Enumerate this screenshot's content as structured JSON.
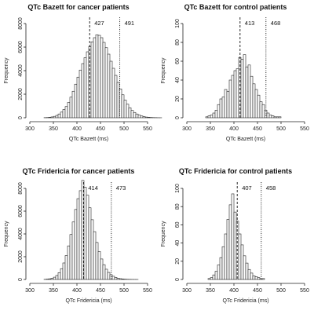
{
  "chart_data": [
    {
      "type": "bar",
      "title": "QTc Bazett for cancer patients",
      "xlabel": "QTc Bazett",
      "ylabel": "Frequency",
      "xlim": [
        300,
        550
      ],
      "ylim": [
        0,
        8000
      ],
      "xticks": [
        "300",
        "350",
        "400",
        "450",
        "500",
        "550"
      ],
      "yticks": [
        "0",
        "2000",
        "4000",
        "6000",
        "8000"
      ],
      "bin_width": 5,
      "bins_start": 330,
      "values": [
        10,
        20,
        40,
        70,
        120,
        200,
        320,
        480,
        700,
        950,
        1300,
        1750,
        2250,
        2850,
        3450,
        4050,
        4600,
        5100,
        5600,
        6050,
        6450,
        6800,
        7050,
        7000,
        6800,
        6400,
        5950,
        5400,
        4800,
        4200,
        3600,
        3000,
        2450,
        1950,
        1500,
        1150,
        850,
        620,
        450,
        320,
        220,
        150,
        100,
        60,
        40,
        25,
        15,
        10,
        5,
        3
      ],
      "vlines": [
        {
          "x": 427,
          "style": "dashed",
          "label": "427"
        },
        {
          "x": 491,
          "style": "dotted",
          "label": "491"
        }
      ]
    },
    {
      "type": "bar",
      "title": "QTc Bazett for control patients",
      "xlabel": "QTc Bazett",
      "ylabel": "Frequency",
      "xlim": [
        300,
        550
      ],
      "ylim": [
        0,
        100
      ],
      "xticks": [
        "300",
        "350",
        "400",
        "450",
        "500",
        "550"
      ],
      "yticks": [
        "0",
        "20",
        "40",
        "60",
        "80",
        "100"
      ],
      "bin_width": 5,
      "bins_start": 340,
      "values": [
        1,
        2,
        3,
        5,
        8,
        14,
        20,
        22,
        30,
        28,
        40,
        45,
        50,
        52,
        64,
        62,
        67,
        54,
        56,
        44,
        36,
        30,
        24,
        17,
        14,
        8,
        5,
        3,
        2,
        1,
        1,
        1
      ],
      "vlines": [
        {
          "x": 413,
          "style": "dashed",
          "label": "413"
        },
        {
          "x": 468,
          "style": "dotted",
          "label": "468"
        }
      ]
    },
    {
      "type": "bar",
      "title": "QTc Fridericia for cancer patients",
      "xlabel": "QTc Fridericia",
      "ylabel": "Frequency",
      "xlim": [
        300,
        550
      ],
      "ylim": [
        0,
        8000
      ],
      "xticks": [
        "300",
        "350",
        "400",
        "450",
        "500",
        "550"
      ],
      "yticks": [
        "0",
        "2000",
        "4000",
        "6000",
        "8000"
      ],
      "bin_width": 5,
      "bins_start": 330,
      "values": [
        10,
        30,
        60,
        110,
        200,
        350,
        600,
        950,
        1450,
        2100,
        2950,
        3950,
        5050,
        6150,
        7100,
        7800,
        8700,
        8100,
        7400,
        6300,
        5250,
        4200,
        3250,
        2450,
        1800,
        1300,
        900,
        620,
        420,
        280,
        180,
        110,
        70,
        40,
        25,
        15,
        10,
        5,
        3,
        2
      ],
      "vlines": [
        {
          "x": 414,
          "style": "dashed",
          "label": "414"
        },
        {
          "x": 473,
          "style": "dotted",
          "label": "473"
        }
      ]
    },
    {
      "type": "bar",
      "title": "QTc Fridericia for control patients",
      "xlabel": "QTc Fridericia",
      "ylabel": "Frequency",
      "xlim": [
        300,
        550
      ],
      "ylim": [
        0,
        100
      ],
      "xticks": [
        "300",
        "350",
        "400",
        "450",
        "500",
        "550"
      ],
      "yticks": [
        "0",
        "20",
        "40",
        "60",
        "80",
        "100"
      ],
      "bin_width": 5,
      "bins_start": 345,
      "values": [
        1,
        2,
        5,
        9,
        16,
        24,
        36,
        50,
        66,
        82,
        94,
        74,
        64,
        50,
        38,
        26,
        18,
        11,
        7,
        4,
        3,
        2,
        1,
        1
      ],
      "vlines": [
        {
          "x": 407,
          "style": "dashed",
          "label": "407"
        },
        {
          "x": 458,
          "style": "dotted",
          "label": "458"
        }
      ]
    }
  ],
  "units": {
    "ms_suffix": "(ms)"
  }
}
